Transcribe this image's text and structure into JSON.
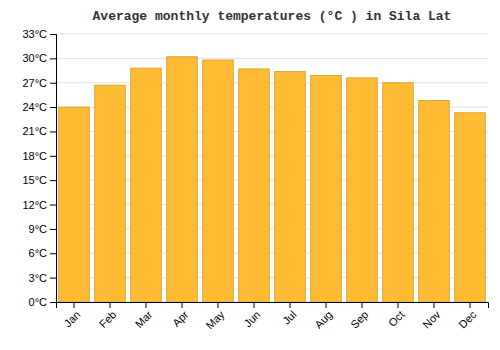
{
  "chart_data": {
    "type": "bar",
    "title": "Average monthly temperatures (°C ) in Sila Lat",
    "categories": [
      "Jan",
      "Feb",
      "Mar",
      "Apr",
      "May",
      "Jun",
      "Jul",
      "Aug",
      "Sep",
      "Oct",
      "Nov",
      "Dec"
    ],
    "values": [
      24.0,
      26.7,
      28.8,
      30.2,
      29.8,
      28.7,
      28.4,
      27.9,
      27.6,
      27.0,
      24.8,
      23.3
    ],
    "color": "#FFBB33",
    "ylim": [
      0,
      33
    ],
    "yticks": [
      {
        "value": 0,
        "label": "0°C"
      },
      {
        "value": 3,
        "label": "3°C"
      },
      {
        "value": 6,
        "label": "6°C"
      },
      {
        "value": 9,
        "label": "9°C"
      },
      {
        "value": 12,
        "label": "12°C"
      },
      {
        "value": 15,
        "label": "15°C"
      },
      {
        "value": 18,
        "label": "18°C"
      },
      {
        "value": 21,
        "label": "21°C"
      },
      {
        "value": 24,
        "label": "24°C"
      },
      {
        "value": 27,
        "label": "27°C"
      },
      {
        "value": 30,
        "label": "30°C"
      },
      {
        "value": 33,
        "label": "33°C"
      }
    ],
    "grid": true
  }
}
